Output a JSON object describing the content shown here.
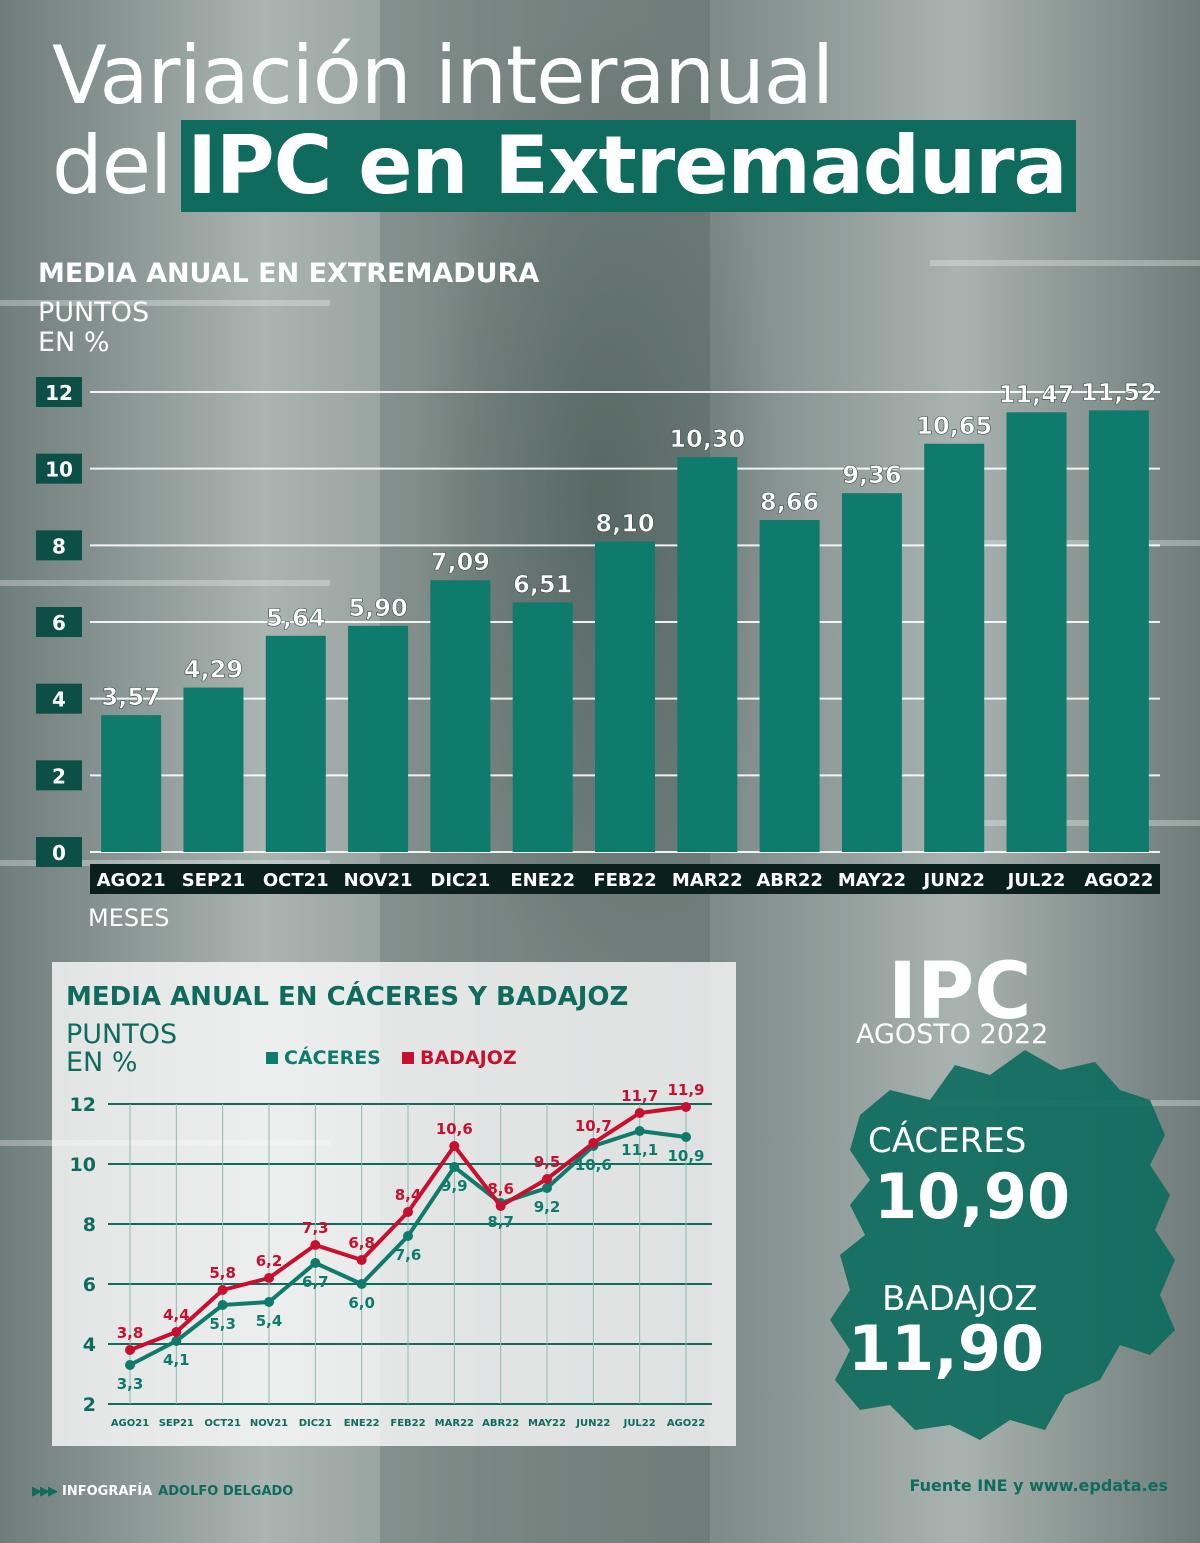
{
  "title": {
    "line1": "Variación interanual",
    "line2_plain": "del",
    "line2_highlight": "IPC en Extremadura"
  },
  "chart1_header": {
    "title": "MEDIA ANUAL EN EXTREMADURA",
    "unit_line1": "PUNTOS",
    "unit_line2": "EN %"
  },
  "chart2_header": {
    "title": "MEDIA ANUAL EN CÁCERES Y BADAJOZ",
    "unit_line1": "PUNTOS",
    "unit_line2": "EN %"
  },
  "ipc_summary": {
    "heading": "IPC",
    "period": "AGOSTO 2022",
    "caceres_label": "CÁCERES",
    "caceres_value": "10,90",
    "badajoz_label": "BADAJOZ",
    "badajoz_value": "11,90"
  },
  "footer": {
    "left_prefix": "INFOGRAFÍA",
    "left_author": "ADOLFO DELGADO",
    "right_source": "Fuente INE y www.epdata.es"
  },
  "colors": {
    "teal": "#0e6b5e",
    "bar": "#0e7b6c",
    "red": "#c8102e",
    "white": "#ffffff"
  },
  "chart_data": [
    {
      "type": "bar",
      "title": "MEDIA ANUAL EN EXTREMADURA",
      "ylabel": "PUNTOS EN %",
      "xlabel": "MESES",
      "ylim": [
        0,
        12
      ],
      "yticks": [
        0,
        2,
        4,
        6,
        8,
        10,
        12
      ],
      "grid": true,
      "categories": [
        "AGO21",
        "SEP21",
        "OCT21",
        "NOV21",
        "DIC21",
        "ENE22",
        "FEB22",
        "MAR22",
        "ABR22",
        "MAY22",
        "JUN22",
        "JUL22",
        "AGO22"
      ],
      "values": [
        3.57,
        4.29,
        5.64,
        5.9,
        7.09,
        6.51,
        8.1,
        10.3,
        8.66,
        9.36,
        10.65,
        11.47,
        11.52
      ],
      "labels": [
        "3,57",
        "4,29",
        "5,64",
        "5,90",
        "7,09",
        "6,51",
        "8,10",
        "10,30",
        "8,66",
        "9,36",
        "10,65",
        "11,47",
        "11,52"
      ]
    },
    {
      "type": "line",
      "title": "MEDIA ANUAL EN CÁCERES Y BADAJOZ",
      "ylabel": "PUNTOS EN %",
      "ylim": [
        2,
        12
      ],
      "yticks": [
        2,
        4,
        6,
        8,
        10,
        12
      ],
      "grid": true,
      "legend": "top",
      "categories": [
        "AGO21",
        "SEP21",
        "OCT21",
        "NOV21",
        "DIC21",
        "ENE22",
        "FEB22",
        "MAR22",
        "ABR22",
        "MAY22",
        "JUN22",
        "JUL22",
        "AGO22"
      ],
      "series": [
        {
          "name": "CÁCERES",
          "color": "#0e7b6c",
          "values": [
            3.3,
            4.1,
            5.3,
            5.4,
            6.7,
            6.0,
            7.6,
            9.9,
            8.7,
            9.2,
            10.6,
            11.1,
            10.9
          ],
          "labels": [
            "3,3",
            "4,1",
            "5,3",
            "5,4",
            "6,7",
            "6,0",
            "7,6",
            "9,9",
            "8,7",
            "9,2",
            "10,6",
            "11,1",
            "10,9"
          ]
        },
        {
          "name": "BADAJOZ",
          "color": "#c8102e",
          "values": [
            3.8,
            4.4,
            5.8,
            6.2,
            7.3,
            6.8,
            8.4,
            10.6,
            8.6,
            9.5,
            10.7,
            11.7,
            11.9
          ],
          "labels": [
            "3,8",
            "4,4",
            "5,8",
            "6,2",
            "7,3",
            "6,8",
            "8,4",
            "10,6",
            "8,6",
            "9,5",
            "10,7",
            "11,7",
            "11,9"
          ]
        }
      ]
    }
  ]
}
